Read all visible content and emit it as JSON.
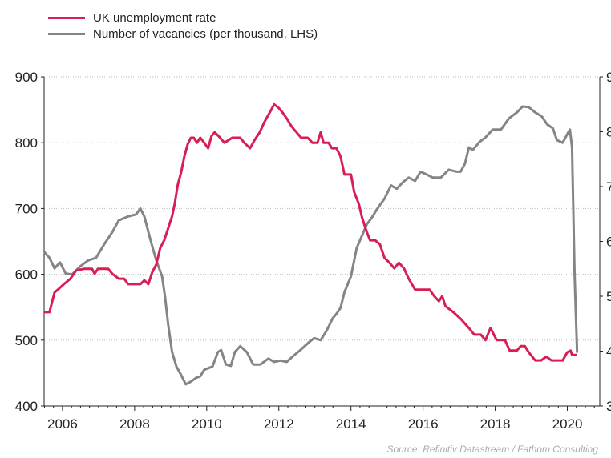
{
  "colors": {
    "unemployment": "#d81e55",
    "vacancies": "#858585"
  },
  "legend": {
    "unemployment": "UK unemployment rate",
    "vacancies": "Number of vacancies (per thousand, LHS)"
  },
  "source": "Source: Refinitiv Datastream / Fathom Consulting",
  "chart_data": {
    "type": "line",
    "title": "",
    "xlim": [
      2005.49,
      2020.9
    ],
    "ylim_left": [
      400,
      900
    ],
    "ylim_right": [
      3,
      9
    ],
    "x_ticks": [
      "2006",
      "2008",
      "2010",
      "2012",
      "2014",
      "2016",
      "2018",
      "2020"
    ],
    "y_ticks_left": [
      "400",
      "500",
      "600",
      "700",
      "800",
      "900"
    ],
    "y_ticks_right": [
      "3",
      "4",
      "5",
      "6",
      "7",
      "8",
      "9"
    ],
    "grid": "horizontal dotted",
    "legend_position": "top-left",
    "series": [
      {
        "name": "Number of vacancies (per thousand, LHS)",
        "axis": "left",
        "x": [
          2005.49,
          2005.64,
          2005.78,
          2005.93,
          2006.09,
          2006.27,
          2006.49,
          2006.71,
          2006.93,
          2007.16,
          2007.38,
          2007.56,
          2007.82,
          2008.04,
          2008.16,
          2008.27,
          2008.44,
          2008.6,
          2008.76,
          2008.84,
          2008.93,
          2009.04,
          2009.16,
          2009.29,
          2009.42,
          2009.56,
          2009.71,
          2009.82,
          2009.93,
          2010.16,
          2010.31,
          2010.4,
          2010.53,
          2010.67,
          2010.78,
          2010.93,
          2011.11,
          2011.29,
          2011.49,
          2011.71,
          2011.87,
          2012.04,
          2012.22,
          2012.38,
          2012.6,
          2012.82,
          2012.98,
          2013.16,
          2013.33,
          2013.49,
          2013.6,
          2013.71,
          2013.82,
          2014.0,
          2014.16,
          2014.27,
          2014.44,
          2014.6,
          2014.71,
          2014.93,
          2015.11,
          2015.27,
          2015.44,
          2015.6,
          2015.78,
          2015.93,
          2016.09,
          2016.27,
          2016.49,
          2016.71,
          2016.93,
          2017.04,
          2017.16,
          2017.27,
          2017.38,
          2017.56,
          2017.73,
          2017.93,
          2018.16,
          2018.38,
          2018.6,
          2018.76,
          2018.93,
          2019.11,
          2019.29,
          2019.44,
          2019.6,
          2019.71,
          2019.87,
          2020.0,
          2020.07,
          2020.13,
          2020.2,
          2020.27
        ],
        "y": [
          634,
          625,
          609,
          618,
          601,
          600,
          612,
          621,
          625,
          646,
          664,
          682,
          688,
          691,
          700,
          688,
          652,
          621,
          597,
          567,
          524,
          482,
          460,
          447,
          433,
          437,
          443,
          445,
          455,
          460,
          482,
          485,
          463,
          461,
          482,
          491,
          482,
          463,
          463,
          472,
          467,
          469,
          467,
          475,
          485,
          496,
          503,
          500,
          515,
          533,
          540,
          549,
          573,
          597,
          640,
          654,
          676,
          688,
          698,
          715,
          735,
          730,
          740,
          747,
          742,
          756,
          752,
          747,
          747,
          759,
          756,
          756,
          768,
          793,
          789,
          801,
          808,
          820,
          820,
          837,
          846,
          855,
          854,
          846,
          840,
          828,
          822,
          804,
          800,
          813,
          820,
          793,
          603,
          481
        ]
      },
      {
        "name": "UK unemployment rate",
        "axis": "right",
        "x": [
          2005.49,
          2005.64,
          2005.78,
          2005.87,
          2006.04,
          2006.22,
          2006.38,
          2006.6,
          2006.82,
          2006.89,
          2006.98,
          2007.27,
          2007.38,
          2007.56,
          2007.71,
          2007.82,
          2008.16,
          2008.27,
          2008.38,
          2008.49,
          2008.6,
          2008.71,
          2008.82,
          2008.93,
          2009.04,
          2009.11,
          2009.2,
          2009.29,
          2009.38,
          2009.47,
          2009.56,
          2009.64,
          2009.73,
          2009.82,
          2009.93,
          2010.04,
          2010.13,
          2010.22,
          2010.33,
          2010.49,
          2010.71,
          2010.93,
          2011.04,
          2011.2,
          2011.33,
          2011.47,
          2011.6,
          2011.78,
          2011.87,
          2012.0,
          2012.09,
          2012.22,
          2012.36,
          2012.49,
          2012.62,
          2012.8,
          2012.93,
          2013.07,
          2013.16,
          2013.24,
          2013.38,
          2013.47,
          2013.6,
          2013.71,
          2013.82,
          2014.0,
          2014.09,
          2014.22,
          2014.31,
          2014.44,
          2014.53,
          2014.67,
          2014.8,
          2014.93,
          2015.07,
          2015.2,
          2015.33,
          2015.47,
          2015.6,
          2015.78,
          2015.96,
          2016.18,
          2016.31,
          2016.44,
          2016.53,
          2016.62,
          2016.84,
          2017.04,
          2017.27,
          2017.42,
          2017.6,
          2017.73,
          2017.87,
          2018.04,
          2018.27,
          2018.4,
          2018.6,
          2018.71,
          2018.82,
          2018.93,
          2019.11,
          2019.27,
          2019.42,
          2019.56,
          2019.71,
          2019.87,
          2020.0,
          2020.09,
          2020.13,
          2020.27
        ],
        "y": [
          4.71,
          4.71,
          5.07,
          5.12,
          5.22,
          5.32,
          5.47,
          5.5,
          5.5,
          5.41,
          5.5,
          5.5,
          5.41,
          5.32,
          5.32,
          5.22,
          5.22,
          5.29,
          5.22,
          5.44,
          5.58,
          5.88,
          6.02,
          6.24,
          6.46,
          6.68,
          7.04,
          7.26,
          7.55,
          7.77,
          7.89,
          7.89,
          7.8,
          7.89,
          7.8,
          7.7,
          7.92,
          7.99,
          7.92,
          7.8,
          7.89,
          7.89,
          7.8,
          7.7,
          7.85,
          7.99,
          8.18,
          8.39,
          8.5,
          8.43,
          8.36,
          8.24,
          8.09,
          7.99,
          7.89,
          7.89,
          7.8,
          7.8,
          7.99,
          7.8,
          7.8,
          7.7,
          7.7,
          7.55,
          7.22,
          7.22,
          6.9,
          6.68,
          6.43,
          6.17,
          6.02,
          6.02,
          5.95,
          5.7,
          5.61,
          5.51,
          5.61,
          5.51,
          5.32,
          5.12,
          5.12,
          5.12,
          5.0,
          4.91,
          5.0,
          4.82,
          4.71,
          4.59,
          4.42,
          4.3,
          4.3,
          4.2,
          4.42,
          4.2,
          4.2,
          4.01,
          4.01,
          4.09,
          4.09,
          3.98,
          3.83,
          3.83,
          3.9,
          3.83,
          3.83,
          3.83,
          3.98,
          4.01,
          3.93,
          3.93
        ]
      }
    ]
  }
}
